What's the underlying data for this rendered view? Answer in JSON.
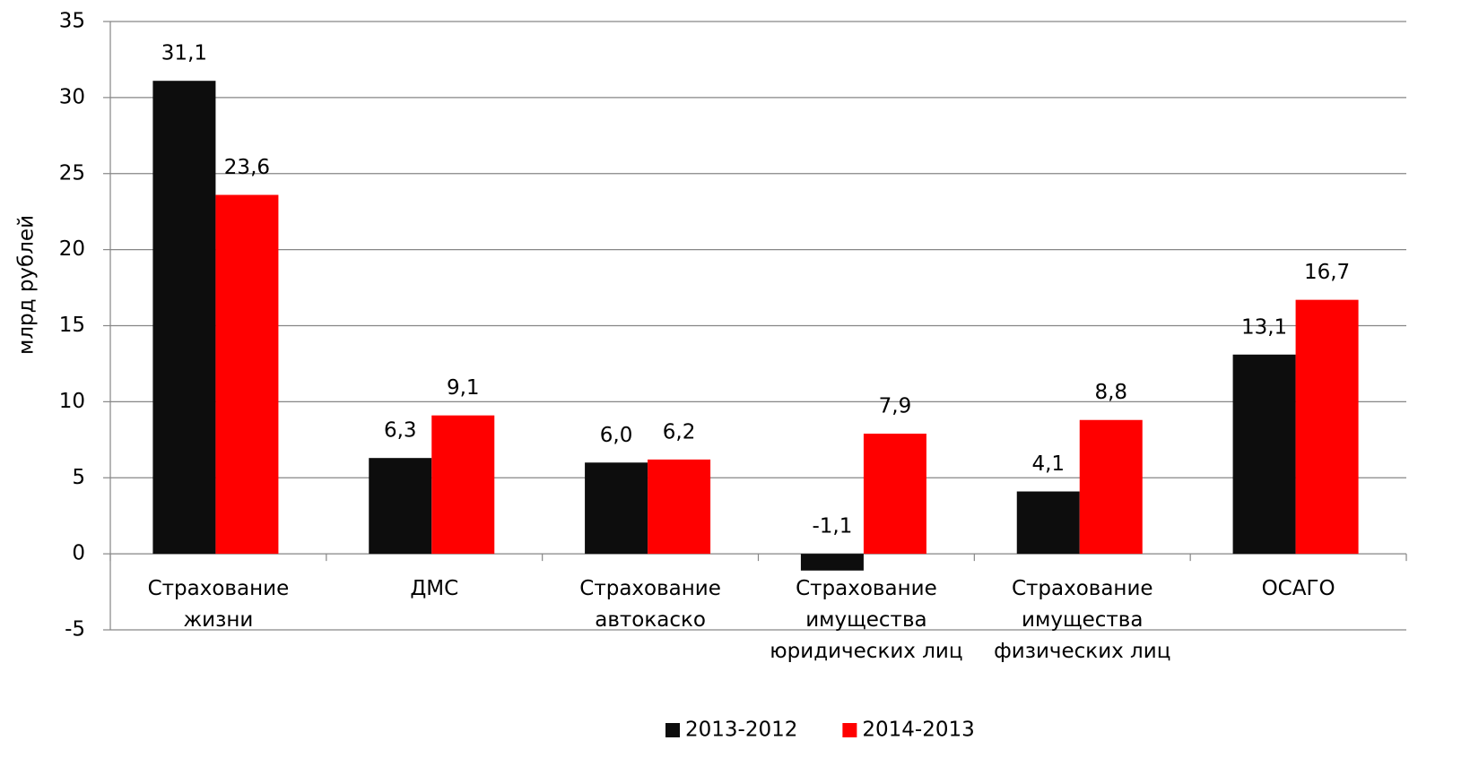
{
  "chart_data": {
    "type": "bar",
    "y_label": "млрд рублей",
    "categories": [
      "Страхование\nжизни",
      "ДМС",
      "Страхование\nавтокаско",
      "Страхование\nимущества\nюридических лиц",
      "Страхование\nимущества\nфизических лиц",
      "ОСАГО"
    ],
    "series": [
      {
        "name": "2013-2012",
        "color": "#0d0d0d",
        "values": [
          31.1,
          6.3,
          6.0,
          -1.1,
          4.1,
          13.1
        ],
        "value_labels": [
          "31,1",
          "6,3",
          "6,0",
          "-1,1",
          "4,1",
          "13,1"
        ]
      },
      {
        "name": "2014-2013",
        "color": "#ff0000",
        "values": [
          23.6,
          9.1,
          6.2,
          7.9,
          8.8,
          16.7
        ],
        "value_labels": [
          "23,6",
          "9,1",
          "6,2",
          "7,9",
          "8,8",
          "16,7"
        ]
      }
    ],
    "ylim": [
      -5,
      35
    ],
    "yticks": [
      -5,
      0,
      5,
      10,
      15,
      20,
      25,
      30,
      35
    ],
    "grid": true,
    "legend": "bottom"
  }
}
